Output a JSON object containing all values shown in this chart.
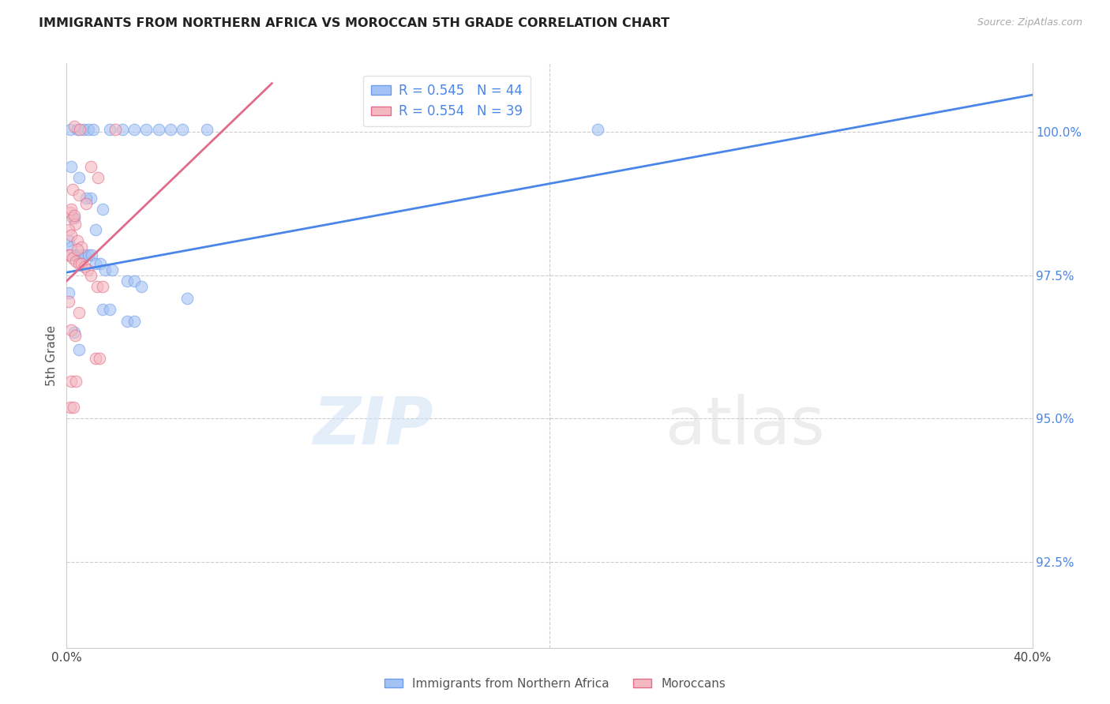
{
  "title": "IMMIGRANTS FROM NORTHERN AFRICA VS MOROCCAN 5TH GRADE CORRELATION CHART",
  "source": "Source: ZipAtlas.com",
  "ylabel": "5th Grade",
  "xmin": 0.0,
  "xmax": 40.0,
  "ymin": 91.0,
  "ymax": 101.2,
  "r_blue": 0.545,
  "n_blue": 44,
  "r_pink": 0.554,
  "n_pink": 39,
  "blue_color": "#a4c2f4",
  "pink_color": "#f4b8c1",
  "blue_edge_color": "#6d9eeb",
  "pink_edge_color": "#e06c8a",
  "blue_line_color": "#4a86e8",
  "pink_line_color": "#e06c8a",
  "ytick_color": "#4a86e8",
  "blue_trendline": [
    [
      0.0,
      97.55
    ],
    [
      40.0,
      100.65
    ]
  ],
  "pink_trendline": [
    [
      0.0,
      97.4
    ],
    [
      8.5,
      100.85
    ]
  ],
  "blue_scatter": [
    [
      0.15,
      100.05
    ],
    [
      0.45,
      100.05
    ],
    [
      0.7,
      100.05
    ],
    [
      0.9,
      100.05
    ],
    [
      1.1,
      100.05
    ],
    [
      1.8,
      100.05
    ],
    [
      2.3,
      100.05
    ],
    [
      2.8,
      100.05
    ],
    [
      3.3,
      100.05
    ],
    [
      3.8,
      100.05
    ],
    [
      4.3,
      100.05
    ],
    [
      4.8,
      100.05
    ],
    [
      5.8,
      100.05
    ],
    [
      22.0,
      100.05
    ],
    [
      0.2,
      99.4
    ],
    [
      0.5,
      99.2
    ],
    [
      1.0,
      98.85
    ],
    [
      0.8,
      98.85
    ],
    [
      1.5,
      98.65
    ],
    [
      0.3,
      98.5
    ],
    [
      1.2,
      98.3
    ],
    [
      0.1,
      98.1
    ],
    [
      0.2,
      98.0
    ],
    [
      0.3,
      97.85
    ],
    [
      0.45,
      97.85
    ],
    [
      0.6,
      97.85
    ],
    [
      0.75,
      97.85
    ],
    [
      0.9,
      97.85
    ],
    [
      1.05,
      97.85
    ],
    [
      1.2,
      97.7
    ],
    [
      1.4,
      97.7
    ],
    [
      1.6,
      97.6
    ],
    [
      1.9,
      97.6
    ],
    [
      2.5,
      97.4
    ],
    [
      2.8,
      97.4
    ],
    [
      3.1,
      97.3
    ],
    [
      5.0,
      97.1
    ],
    [
      1.5,
      96.9
    ],
    [
      1.8,
      96.9
    ],
    [
      2.5,
      96.7
    ],
    [
      2.8,
      96.7
    ],
    [
      0.3,
      96.5
    ],
    [
      0.5,
      96.2
    ],
    [
      0.1,
      97.2
    ]
  ],
  "pink_scatter": [
    [
      0.3,
      100.1
    ],
    [
      0.55,
      100.05
    ],
    [
      2.0,
      100.05
    ],
    [
      1.0,
      99.4
    ],
    [
      1.3,
      99.2
    ],
    [
      0.25,
      99.0
    ],
    [
      0.5,
      98.9
    ],
    [
      0.8,
      98.75
    ],
    [
      0.15,
      98.6
    ],
    [
      0.25,
      98.5
    ],
    [
      0.35,
      98.4
    ],
    [
      0.1,
      98.3
    ],
    [
      0.2,
      98.2
    ],
    [
      0.45,
      98.1
    ],
    [
      0.6,
      98.0
    ],
    [
      0.08,
      97.85
    ],
    [
      0.15,
      97.85
    ],
    [
      0.25,
      97.8
    ],
    [
      0.38,
      97.75
    ],
    [
      0.5,
      97.7
    ],
    [
      0.62,
      97.7
    ],
    [
      0.75,
      97.65
    ],
    [
      0.88,
      97.6
    ],
    [
      1.0,
      97.5
    ],
    [
      1.25,
      97.3
    ],
    [
      1.5,
      97.3
    ],
    [
      0.5,
      96.85
    ],
    [
      1.2,
      96.05
    ],
    [
      1.35,
      96.05
    ],
    [
      0.2,
      95.65
    ],
    [
      0.38,
      95.65
    ],
    [
      0.15,
      95.2
    ],
    [
      0.28,
      95.2
    ],
    [
      0.1,
      97.05
    ],
    [
      0.2,
      96.55
    ],
    [
      0.35,
      96.45
    ],
    [
      0.2,
      98.65
    ],
    [
      0.3,
      98.55
    ],
    [
      0.45,
      97.95
    ]
  ]
}
